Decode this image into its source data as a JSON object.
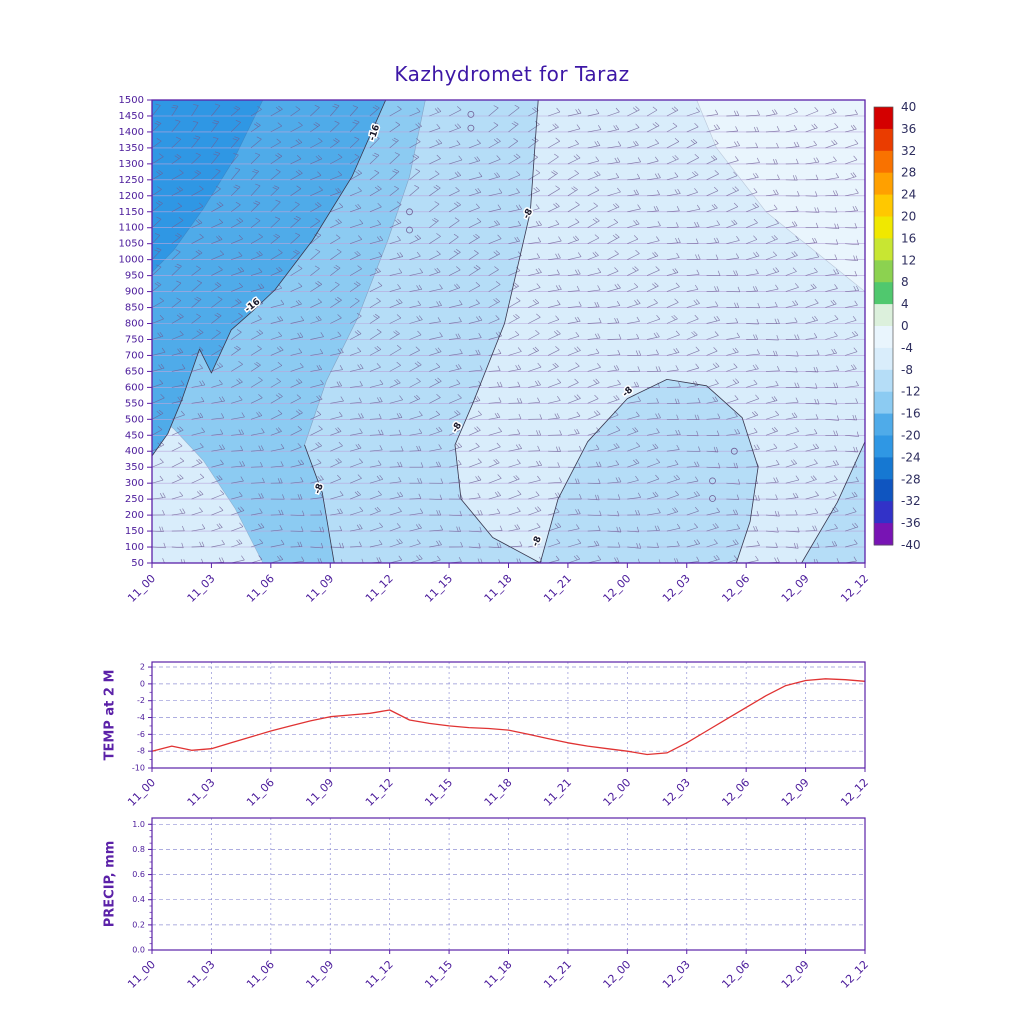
{
  "title": "Kazhydromet for Taraz",
  "time_labels": [
    "11_00",
    "11_03",
    "11_06",
    "11_09",
    "11_12",
    "11_15",
    "11_18",
    "11_21",
    "12_00",
    "12_03",
    "12_06",
    "12_09",
    "12_12"
  ],
  "colors": {
    "title": "#3d17a6",
    "axis": "#5b21a8",
    "tick_text": "#4a1a9a",
    "grid": "#8080d0",
    "temp_line": "#e03333",
    "contour": "#3a3a52",
    "barb": "#6f5f96",
    "level_line": "#b9a6dc",
    "colorbar_text": "#2d2d5e",
    "contour_label": "#18182a",
    "background": "#ffffff"
  },
  "chart_data": [
    {
      "type": "heatmap",
      "name": "temperature_height_cross_section",
      "x_hours_range": [
        0,
        36
      ],
      "x_categories": [
        "11_00",
        "11_03",
        "11_06",
        "11_09",
        "11_12",
        "11_15",
        "11_18",
        "11_21",
        "12_00",
        "12_03",
        "12_06",
        "12_09",
        "12_12"
      ],
      "levels": [
        1500,
        1450,
        1400,
        1350,
        1300,
        1250,
        1200,
        1150,
        1100,
        1050,
        1000,
        950,
        900,
        850,
        800,
        750,
        700,
        650,
        600,
        550,
        500,
        450,
        400,
        350,
        300,
        250,
        200,
        150,
        100,
        50
      ],
      "ylim": [
        50,
        1500
      ],
      "base_fill": "#d9edfb",
      "colorbar": {
        "tick_values": [
          40,
          36,
          32,
          28,
          24,
          20,
          16,
          12,
          8,
          4,
          0,
          -4,
          -8,
          -12,
          -16,
          -20,
          -24,
          -28,
          -32,
          -36,
          -40
        ],
        "cell_colors": [
          "#d40000",
          "#ea3c00",
          "#f97200",
          "#ffa000",
          "#ffc800",
          "#f0e800",
          "#c8e632",
          "#8cd250",
          "#50c86e",
          "#dcf0dc",
          "#e9f5fd",
          "#d9edfb",
          "#b5ddf7",
          "#8ccbf2",
          "#4fabe9",
          "#2f97e4",
          "#1678d2",
          "#0f55c0",
          "#3232c8",
          "#7814b4"
        ]
      },
      "fill_regions": [
        {
          "range": "0 to -4",
          "color": "#e9f5fd",
          "points": [
            [
              27.5,
              1500
            ],
            [
              36,
              1500
            ],
            [
              36,
              900
            ],
            [
              31,
              1150
            ],
            [
              28.5,
              1350
            ]
          ]
        },
        {
          "range": "-8 to -12",
          "color": "#b5ddf7",
          "points": [
            [
              13.8,
              1500
            ],
            [
              19.5,
              1500
            ],
            [
              19.1,
              1150
            ],
            [
              17.8,
              800
            ],
            [
              16.2,
              550
            ],
            [
              15.3,
              420
            ],
            [
              15.6,
              250
            ],
            [
              17.2,
              130
            ],
            [
              19.6,
              50
            ],
            [
              9.2,
              50
            ],
            [
              8.6,
              270
            ],
            [
              7.7,
              420
            ],
            [
              8.8,
              620
            ],
            [
              10.4,
              820
            ],
            [
              11.9,
              1060
            ],
            [
              13,
              1260
            ]
          ]
        },
        {
          "range": "-12 to -16",
          "color": "#8ccbf2",
          "points": [
            [
              0,
              1500
            ],
            [
              13.8,
              1500
            ],
            [
              13,
              1260
            ],
            [
              11.9,
              1060
            ],
            [
              10.4,
              820
            ],
            [
              8.8,
              620
            ],
            [
              7.7,
              420
            ],
            [
              8.6,
              270
            ],
            [
              9.2,
              50
            ],
            [
              5.6,
              50
            ],
            [
              4.2,
              220
            ],
            [
              2.6,
              370
            ],
            [
              1.1,
              470
            ],
            [
              0,
              520
            ]
          ]
        },
        {
          "range": "-16 to -20",
          "color": "#4fabe9",
          "points": [
            [
              0,
              1500
            ],
            [
              11.8,
              1500
            ],
            [
              10.1,
              1260
            ],
            [
              8.1,
              1060
            ],
            [
              6.2,
              905
            ],
            [
              5.1,
              840
            ],
            [
              4,
              780
            ],
            [
              3,
              645
            ],
            [
              2.4,
              720
            ],
            [
              1.5,
              560
            ],
            [
              0.8,
              455
            ],
            [
              0,
              385
            ]
          ]
        },
        {
          "range": "-20 to -24",
          "color": "#2f97e4",
          "points": [
            [
              0,
              1500
            ],
            [
              5.6,
              1500
            ],
            [
              4.1,
              1310
            ],
            [
              2.6,
              1160
            ],
            [
              1.1,
              1030
            ],
            [
              0,
              960
            ]
          ]
        },
        {
          "range": "-8 to -12 pocket",
          "color": "#b5ddf7",
          "points": [
            [
              19.6,
              50
            ],
            [
              20.5,
              250
            ],
            [
              22,
              430
            ],
            [
              24,
              565
            ],
            [
              26,
              625
            ],
            [
              28,
              605
            ],
            [
              29.8,
              505
            ],
            [
              30.6,
              350
            ],
            [
              30.2,
              180
            ],
            [
              29.5,
              50
            ]
          ]
        },
        {
          "range": "-8 to -12 corner",
          "color": "#b5ddf7",
          "points": [
            [
              32.8,
              50
            ],
            [
              36,
              50
            ],
            [
              36,
              430
            ],
            [
              34.6,
              240
            ]
          ]
        }
      ],
      "contours": [
        {
          "value": -16,
          "points": [
            [
              11.8,
              1500
            ],
            [
              10.1,
              1260
            ],
            [
              8.1,
              1060
            ],
            [
              6.2,
              905
            ],
            [
              5.1,
              840
            ],
            [
              4,
              780
            ],
            [
              3,
              645
            ],
            [
              2.4,
              720
            ],
            [
              1.5,
              560
            ],
            [
              0.8,
              455
            ],
            [
              0,
              385
            ]
          ],
          "labels": [
            [
              11.35,
              1395,
              -72
            ],
            [
              5.15,
              850,
              -38
            ]
          ]
        },
        {
          "value": -8,
          "points": [
            [
              19.5,
              1500
            ],
            [
              19.1,
              1150
            ],
            [
              17.8,
              800
            ],
            [
              16.2,
              550
            ],
            [
              15.3,
              420
            ],
            [
              15.6,
              250
            ],
            [
              17.2,
              130
            ],
            [
              19.6,
              50
            ]
          ],
          "labels": [
            [
              19.1,
              1140,
              -62
            ],
            [
              15.5,
              470,
              -58
            ],
            [
              19.55,
              115,
              -68
            ]
          ]
        },
        {
          "value": -8,
          "points": [
            [
              7.7,
              420
            ],
            [
              8.6,
              270
            ],
            [
              9.2,
              50
            ]
          ],
          "labels": [
            [
              8.55,
              280,
              -70
            ]
          ]
        },
        {
          "value": -8,
          "points": [
            [
              19.6,
              50
            ],
            [
              20.5,
              250
            ],
            [
              22,
              430
            ],
            [
              24,
              565
            ],
            [
              26,
              625
            ],
            [
              28,
              605
            ],
            [
              29.8,
              505
            ],
            [
              30.6,
              350
            ],
            [
              30.2,
              180
            ],
            [
              29.5,
              50
            ]
          ],
          "labels": [
            [
              24.1,
              580,
              -42
            ]
          ]
        },
        {
          "value": -8,
          "points": [
            [
              32.8,
              50
            ],
            [
              34.6,
              240
            ],
            [
              36,
              430
            ]
          ],
          "labels": []
        }
      ],
      "calm_points": [
        [
          16.1,
          1455
        ],
        [
          16.1,
          1412
        ],
        [
          13,
          1150
        ],
        [
          13,
          1093
        ],
        [
          29.4,
          400
        ],
        [
          28.3,
          307
        ],
        [
          28.3,
          252
        ]
      ],
      "wind_barbs": {
        "present": true,
        "col_step_hours": 1,
        "row_step_levels": 50
      }
    },
    {
      "type": "line",
      "ylabel": "TEMP at 2 M",
      "color": "#e03333",
      "ylim": [
        -10,
        2
      ],
      "yticks": [
        2,
        0,
        -2,
        -4,
        -6,
        -8,
        -10
      ],
      "x_step_hours": 1,
      "values": [
        -8,
        -7.4,
        -7.9,
        -7.7,
        -7,
        -6.3,
        -5.6,
        -5,
        -4.4,
        -3.9,
        -3.7,
        -3.5,
        -3.1,
        -4.3,
        -4.7,
        -5,
        -5.2,
        -5.3,
        -5.5,
        -6,
        -6.5,
        -7,
        -7.4,
        -7.7,
        -8,
        -8.4,
        -8.2,
        -7,
        -5.6,
        -4.2,
        -2.8,
        -1.4,
        -0.2,
        0.4,
        0.6,
        0.5,
        0.3
      ]
    },
    {
      "type": "line",
      "ylabel": "PRECIP, mm",
      "color": "#e03333",
      "ylim": [
        0,
        1
      ],
      "yticks": [
        1.0,
        0.8,
        0.6,
        0.4,
        0.2,
        0.0
      ],
      "x_step_hours": 1,
      "values": [
        0,
        0,
        0,
        0,
        0,
        0,
        0,
        0,
        0,
        0,
        0,
        0,
        0,
        0,
        0,
        0,
        0,
        0,
        0,
        0,
        0,
        0,
        0,
        0,
        0,
        0,
        0,
        0,
        0,
        0,
        0,
        0,
        0,
        0,
        0,
        0,
        0
      ]
    }
  ]
}
